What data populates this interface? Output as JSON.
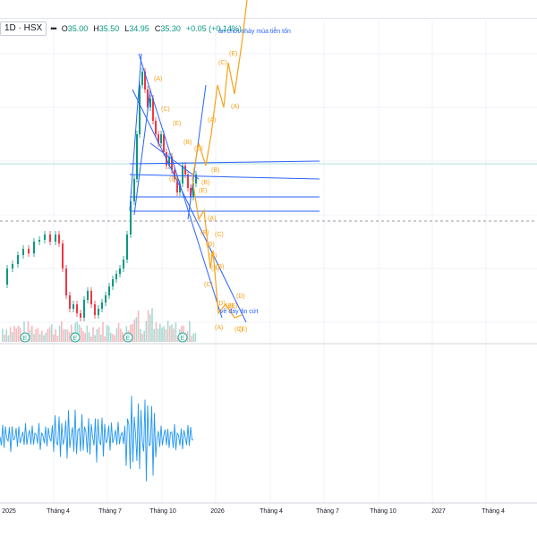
{
  "legend": {
    "symbol": "1D · HSX",
    "more": "•••",
    "open_label": "O",
    "open": "35.00",
    "high_label": "H",
    "high": "35.50",
    "low_label": "L",
    "low": "34.95",
    "close_label": "C",
    "close": "35.30",
    "change": "+0.05 (+0.14%)"
  },
  "colors": {
    "up": "#089981",
    "down": "#f23645",
    "wave": "#f7a21b",
    "trend": "#2962ff",
    "oscillator": "#2196f3",
    "event": "#22ab94"
  },
  "chart_data": {
    "type": "candlestick",
    "x_tick_labels": [
      "2025",
      "Tháng 4",
      "Tháng 7",
      "Tháng 10",
      "2026",
      "Tháng 4",
      "Tháng 7",
      "Tháng 10",
      "2027",
      "Tháng 4"
    ],
    "annotations": [
      "ăn chơi nhảy múa tiễn tốn",
      "về đáy ăn cứt"
    ],
    "event_marker": "E",
    "wave_labels_up": [
      "(A)",
      "(C)",
      "(E)",
      "(D)",
      "(A)",
      "(B)",
      "(E)",
      "(B)",
      "(D)",
      "(B)",
      "(C)",
      "(A)",
      "(E)"
    ],
    "wave_labels_down": [
      "(A)",
      "(B)",
      "(C)",
      "(D)",
      "(E)",
      "(A)",
      "(B)",
      "(C)",
      "(D)",
      "(E)",
      "(D)",
      "(A)",
      "(B)",
      "(C)",
      "(E)"
    ]
  }
}
